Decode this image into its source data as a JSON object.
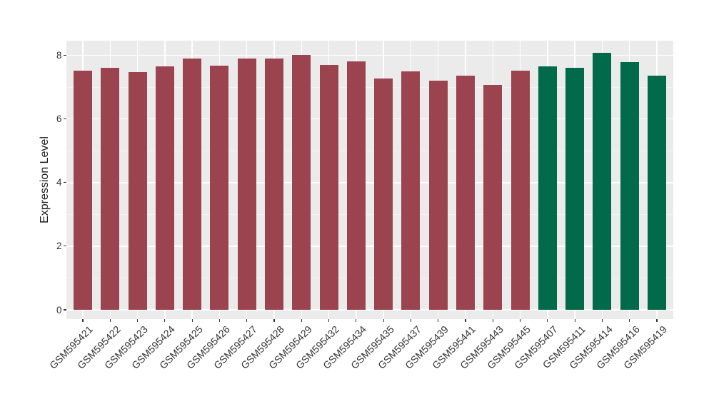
{
  "chart_data": {
    "type": "bar",
    "title": "",
    "xlabel": "",
    "ylabel": "Expression Level",
    "ylim": [
      0,
      8.46
    ],
    "yticks": [
      0,
      2,
      4,
      6,
      8
    ],
    "grid": true,
    "legend": false,
    "panel_background": "#EBEBEB",
    "grid_major_color": "#FFFFFF",
    "grid_minor_color": "#F4F4F4",
    "tick_color": "#333333",
    "group_colors": {
      "red_group": "#9B4450",
      "green_group": "#016A4B"
    },
    "categories": [
      "GSM595421",
      "GSM595422",
      "GSM595423",
      "GSM595424",
      "GSM595425",
      "GSM595426",
      "GSM595427",
      "GSM595428",
      "GSM595429",
      "GSM595432",
      "GSM595434",
      "GSM595435",
      "GSM595437",
      "GSM595439",
      "GSM595441",
      "GSM595443",
      "GSM595445",
      "GSM595407",
      "GSM595411",
      "GSM595414",
      "GSM595416",
      "GSM595419"
    ],
    "values": [
      7.51,
      7.62,
      7.48,
      7.65,
      7.91,
      7.68,
      7.9,
      7.91,
      8.02,
      7.7,
      7.82,
      7.28,
      7.5,
      7.21,
      7.37,
      7.06,
      7.51,
      7.66,
      7.6,
      8.08,
      7.8,
      7.36
    ],
    "bar_colors": [
      "#9B4450",
      "#9B4450",
      "#9B4450",
      "#9B4450",
      "#9B4450",
      "#9B4450",
      "#9B4450",
      "#9B4450",
      "#9B4450",
      "#9B4450",
      "#9B4450",
      "#9B4450",
      "#9B4450",
      "#9B4450",
      "#9B4450",
      "#9B4450",
      "#9B4450",
      "#016A4B",
      "#016A4B",
      "#016A4B",
      "#016A4B",
      "#016A4B"
    ]
  }
}
